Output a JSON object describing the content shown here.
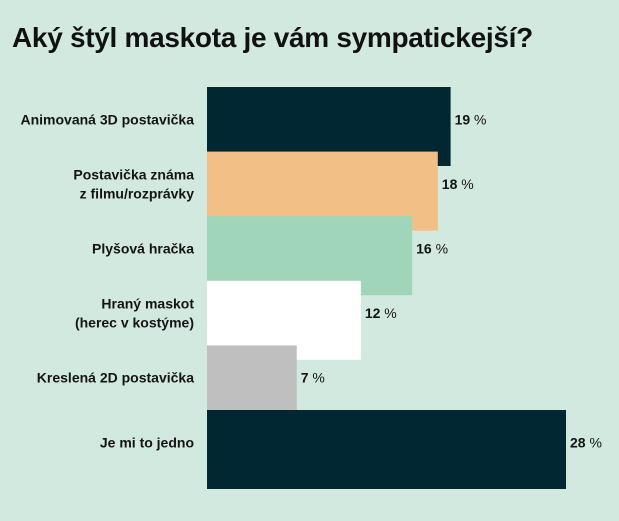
{
  "chart_data": {
    "type": "bar",
    "orientation": "horizontal",
    "title": "Aký štýl maskota je vám sympatickejší?",
    "categories": [
      [
        "Animovaná 3D postavička"
      ],
      [
        "Postavička známa",
        "z filmu/rozprávky"
      ],
      [
        "Plyšová hračka"
      ],
      [
        "Hraný maskot",
        "(herec v kostýme)"
      ],
      [
        "Kreslená 2D postavička"
      ],
      [
        "Je mi to jedno"
      ]
    ],
    "values": [
      19,
      18,
      16,
      12,
      7,
      28
    ],
    "value_labels": [
      "19",
      "18",
      "16",
      "12",
      "7",
      "28"
    ],
    "unit": "%",
    "colors": [
      "#012832",
      "#f2bf86",
      "#a0d5b9",
      "#ffffff",
      "#bfbfbf",
      "#012832"
    ],
    "xlim": [
      0,
      28
    ],
    "grid": false,
    "legend": "none"
  }
}
